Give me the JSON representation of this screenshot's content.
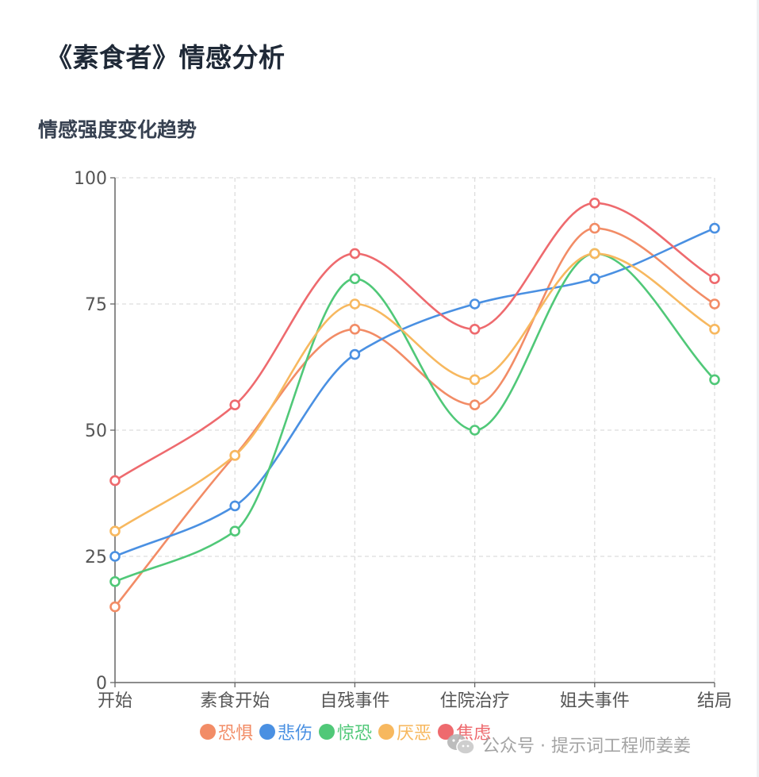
{
  "page": {
    "title": "《素食者》情感分析",
    "section_title": "情感强度变化趋势"
  },
  "watermark": {
    "text": "公众号 · 提示词工程师姜姜",
    "icon": "wechat-icon"
  },
  "chart_data": {
    "type": "line",
    "title": "",
    "xlabel": "",
    "ylabel": "",
    "categories": [
      "开始",
      "素食开始",
      "自残事件",
      "住院治疗",
      "姐夫事件",
      "结局"
    ],
    "ylim": [
      0,
      100
    ],
    "yticks": [
      0,
      25,
      50,
      75,
      100
    ],
    "grid": true,
    "smooth": true,
    "legend_position": "bottom",
    "series": [
      {
        "name": "恐惧",
        "color": "#f28c66",
        "values": [
          15,
          45,
          70,
          55,
          90,
          75
        ]
      },
      {
        "name": "悲伤",
        "color": "#4a90e2",
        "values": [
          25,
          35,
          65,
          75,
          80,
          90
        ]
      },
      {
        "name": "惊恐",
        "color": "#50c878",
        "values": [
          20,
          30,
          80,
          50,
          85,
          60
        ]
      },
      {
        "name": "厌恶",
        "color": "#f7b85f",
        "values": [
          30,
          45,
          75,
          60,
          85,
          70
        ]
      },
      {
        "name": "焦虑",
        "color": "#ee6a6e",
        "values": [
          40,
          55,
          85,
          70,
          95,
          80
        ]
      }
    ]
  }
}
